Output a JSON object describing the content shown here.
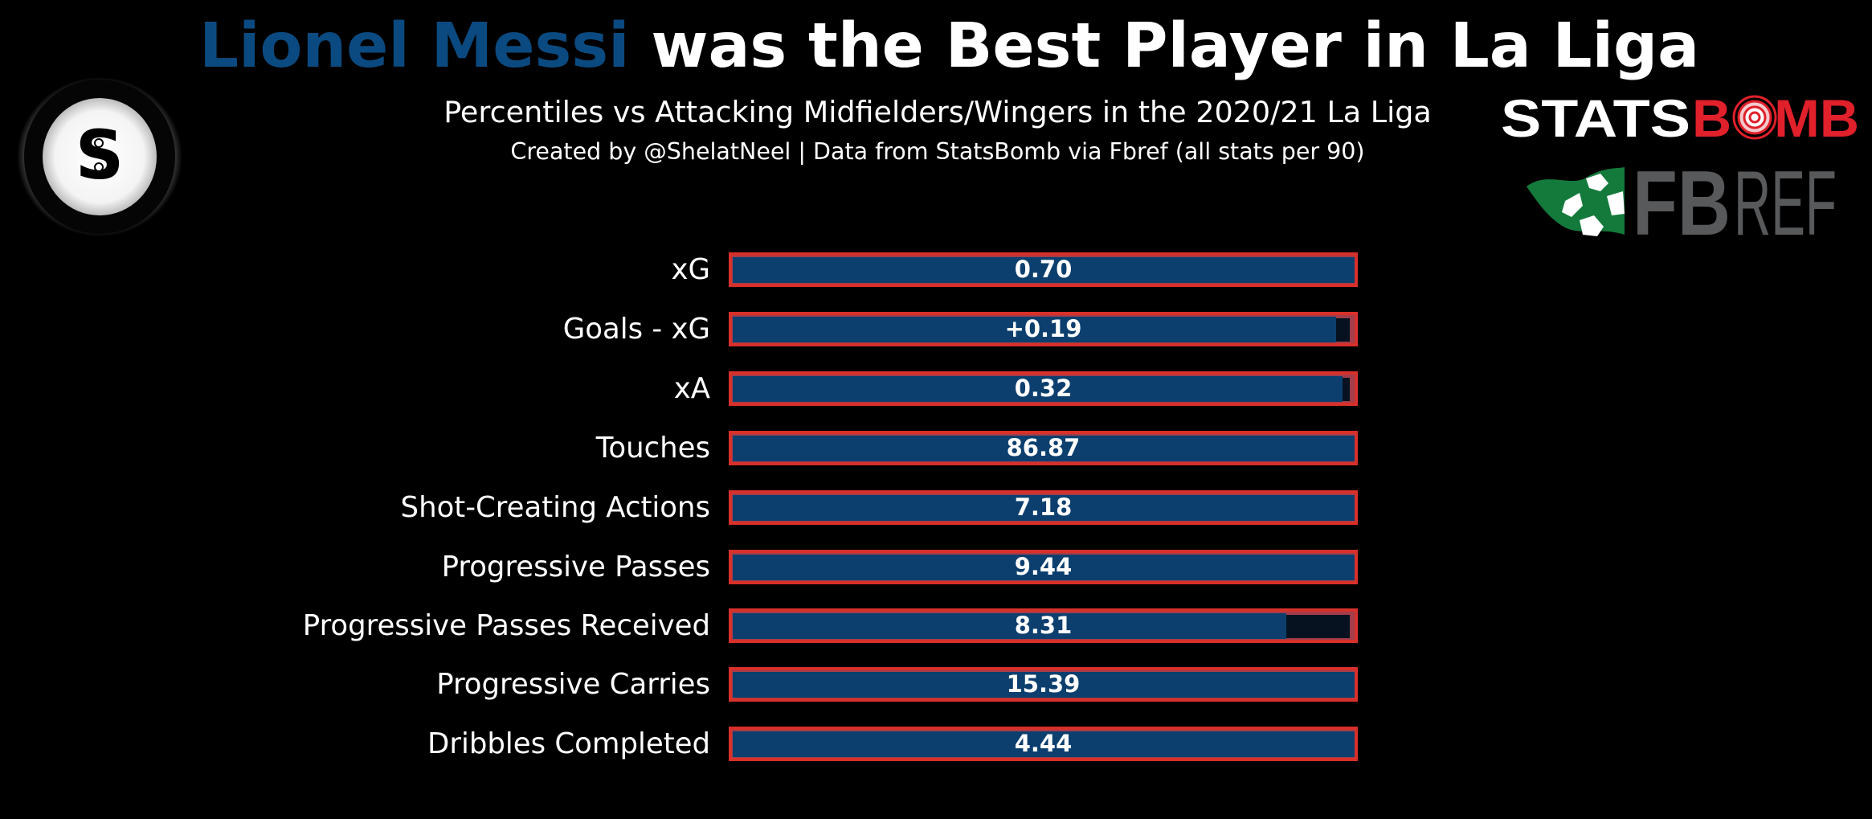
{
  "header": {
    "title_highlight": "Lionel Messi",
    "title_rest": " was the Best Player in La Liga",
    "subtitle": "Percentiles vs Attacking Midfielders/Wingers in the 2020/21 La Liga",
    "credit": "Created by @ShelatNeel | Data from StatsBomb via Fbref (all stats per 90)"
  },
  "logos": {
    "left_logo_letter": "S",
    "statsbomb_white": "STATS",
    "statsbomb_red": "BOMB",
    "fbref_bold": "FB",
    "fbref_light": "REF"
  },
  "colors": {
    "background": "#000000",
    "highlight": "#0b4a80",
    "bar_fill": "#0c3f6e",
    "bar_frame": "#d8302a",
    "bar_track": "#06121f",
    "statsbomb_red": "#e0202a",
    "fbref_green": "#137a3c",
    "fbref_gray": "#58595b"
  },
  "chart_data": {
    "type": "bar",
    "orientation": "horizontal",
    "title": "Lionel Messi was the Best Player in La Liga",
    "subtitle": "Percentiles vs Attacking Midfielders/Wingers in the 2020/21 La Liga",
    "xlabel": "",
    "ylabel": "",
    "xlim": [
      0,
      100
    ],
    "grid": false,
    "legend": null,
    "categories": [
      "xG",
      "Goals - xG",
      "xA",
      "Touches",
      "Shot-Creating Actions",
      "Progressive Passes",
      "Progressive Passes Received",
      "Progressive Carries",
      "Dribbles Completed"
    ],
    "series": [
      {
        "name": "Percentile",
        "values": [
          100,
          97,
          98,
          100,
          100,
          100,
          89,
          100,
          100
        ]
      }
    ],
    "value_labels": [
      "0.70",
      "+0.19",
      "0.32",
      "86.87",
      "7.18",
      "9.44",
      "8.31",
      "15.39",
      "4.44"
    ]
  },
  "rows": [
    {
      "label": "xG",
      "value": "0.70",
      "pct": 100
    },
    {
      "label": "Goals - xG",
      "value": "+0.19",
      "pct": 97
    },
    {
      "label": "xA",
      "value": "0.32",
      "pct": 98
    },
    {
      "label": "Touches",
      "value": "86.87",
      "pct": 100
    },
    {
      "label": "Shot-Creating Actions",
      "value": "7.18",
      "pct": 100
    },
    {
      "label": "Progressive Passes",
      "value": "9.44",
      "pct": 100
    },
    {
      "label": "Progressive Passes Received",
      "value": "8.31",
      "pct": 89
    },
    {
      "label": "Progressive Carries",
      "value": "15.39",
      "pct": 100
    },
    {
      "label": "Dribbles Completed",
      "value": "4.44",
      "pct": 100
    }
  ]
}
